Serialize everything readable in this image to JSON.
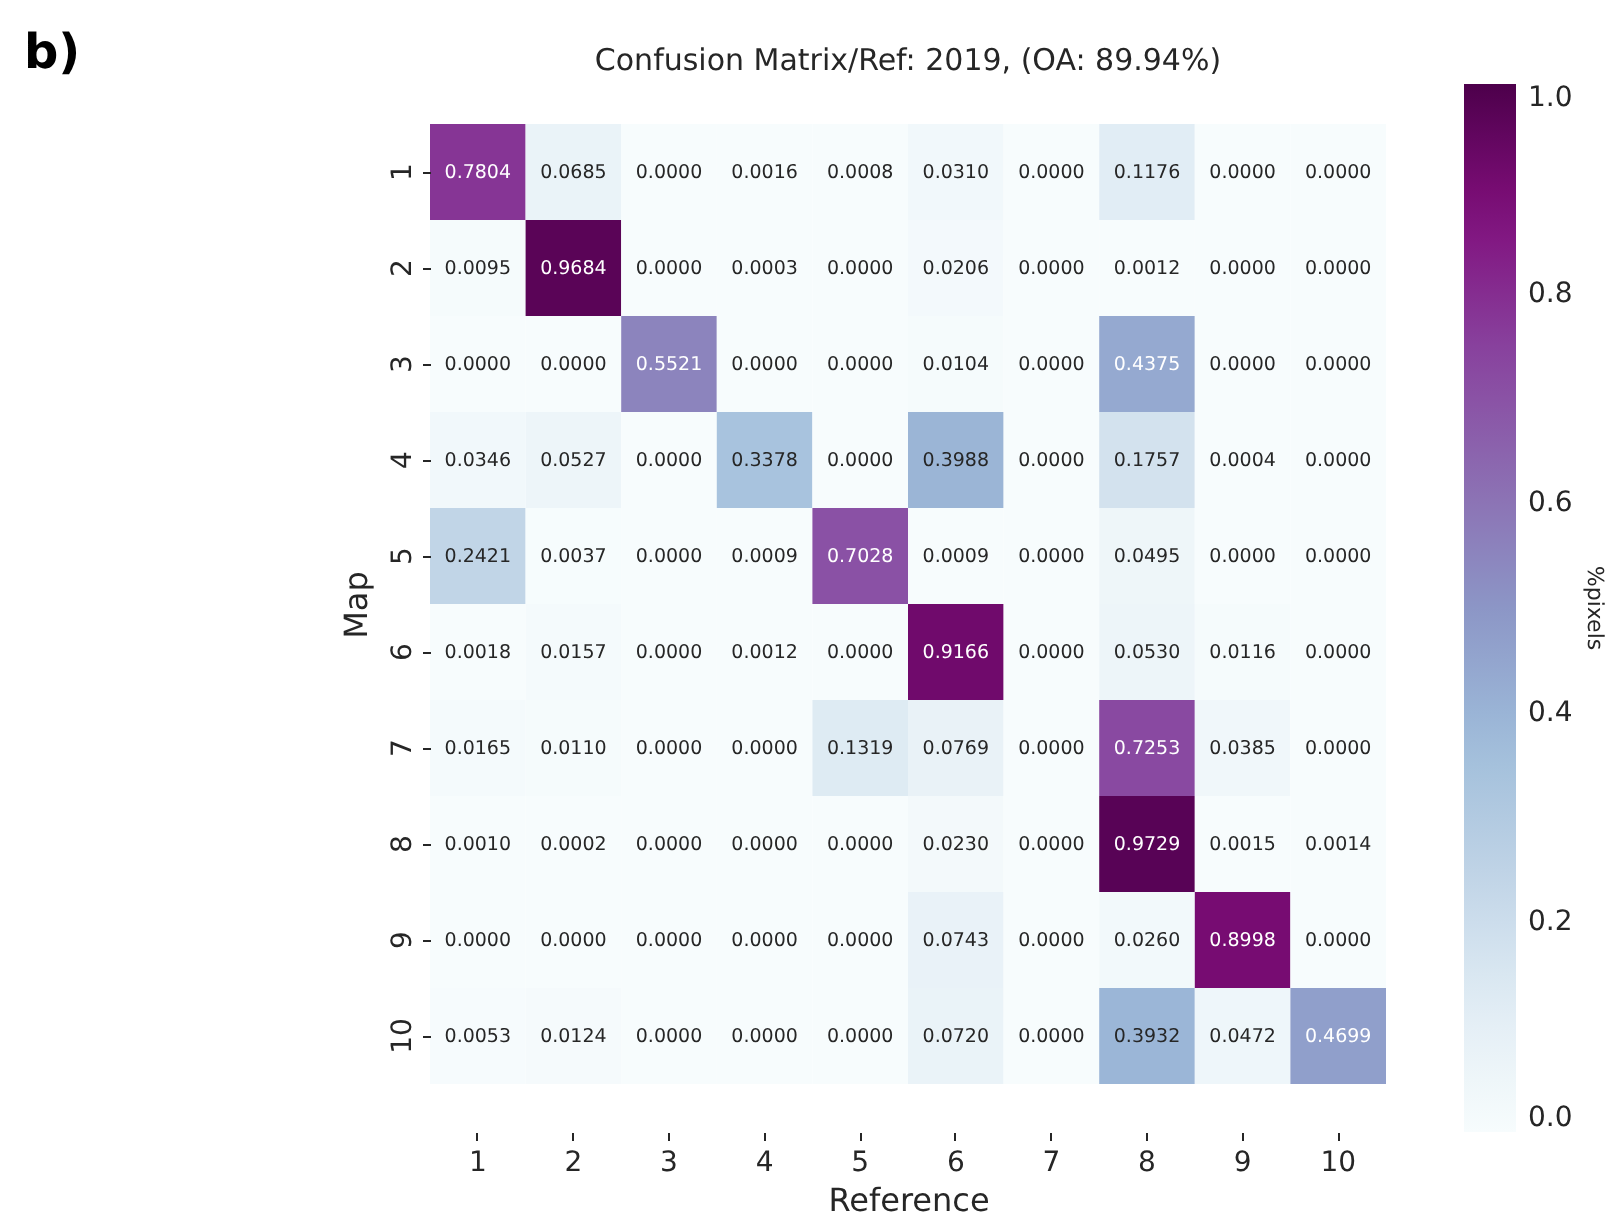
{
  "chart_data": {
    "type": "heatmap",
    "title": "Confusion Matrix/Ref: 2019, (OA: 89.94%)",
    "xlabel": "Reference",
    "ylabel": "Map",
    "clabel": "%pixels",
    "annotations": [
      "b)"
    ],
    "categories": [
      "1",
      "2",
      "3",
      "4",
      "5",
      "6",
      "7",
      "8",
      "9",
      "10"
    ],
    "y_categories": [
      "1",
      "2",
      "3",
      "4",
      "5",
      "6",
      "7",
      "8",
      "9",
      "10"
    ],
    "cells": [
      [
        0.7804,
        0.0685,
        0,
        0.0016,
        0.0008,
        0.031,
        0,
        0.1176,
        0,
        0
      ],
      [
        0.0095,
        0.9684,
        0,
        0.0003,
        0,
        0.0206,
        0,
        0.0012,
        0,
        0
      ],
      [
        0,
        0,
        0.5521,
        0,
        0,
        0.0104,
        0,
        0.4375,
        0,
        0
      ],
      [
        0.0346,
        0.0527,
        0,
        0.3378,
        0,
        0.3988,
        0,
        0.1757,
        0.0004,
        0
      ],
      [
        0.2421,
        0.0037,
        0,
        0.0009,
        0.7028,
        0.0009,
        0,
        0.0495,
        0,
        0
      ],
      [
        0.0018,
        0.0157,
        0,
        0.0012,
        0,
        0.9166,
        0,
        0.053,
        0.0116,
        0
      ],
      [
        0.0165,
        0.011,
        0,
        0,
        0.1319,
        0.0769,
        0,
        0.7253,
        0.0385,
        0
      ],
      [
        0.001,
        0.0002,
        0,
        0,
        0,
        0.023,
        0,
        0.9729,
        0.0015,
        0.0014
      ],
      [
        0,
        0,
        0,
        0,
        0,
        0.0743,
        0,
        0.026,
        0.8998,
        0
      ],
      [
        0.0053,
        0.0124,
        0,
        0,
        0,
        0.072,
        0,
        0.3932,
        0.0472,
        0.4699
      ]
    ],
    "cell_labels": [
      [
        "0.7804",
        "0.0685",
        "0.0000",
        "0.0016",
        "0.0008",
        "0.0310",
        "0.0000",
        "0.1176",
        "0.0000",
        "0.0000"
      ],
      [
        "0.0095",
        "0.9684",
        "0.0000",
        "0.0003",
        "0.0000",
        "0.0206",
        "0.0000",
        "0.0012",
        "0.0000",
        "0.0000"
      ],
      [
        "0.0000",
        "0.0000",
        "0.5521",
        "0.0000",
        "0.0000",
        "0.0104",
        "0.0000",
        "0.4375",
        "0.0000",
        "0.0000"
      ],
      [
        "0.0346",
        "0.0527",
        "0.0000",
        "0.3378",
        "0.0000",
        "0.3988",
        "0.0000",
        "0.1757",
        "0.0004",
        "0.0000"
      ],
      [
        "0.2421",
        "0.0037",
        "0.0000",
        "0.0009",
        "0.7028",
        "0.0009",
        "0.0000",
        "0.0495",
        "0.0000",
        "0.0000"
      ],
      [
        "0.0018",
        "0.0157",
        "0.0000",
        "0.0012",
        "0.0000",
        "0.9166",
        "0.0000",
        "0.0530",
        "0.0116",
        "0.0000"
      ],
      [
        "0.0165",
        "0.0110",
        "0.0000",
        "0.0000",
        "0.1319",
        "0.0769",
        "0.0000",
        "0.7253",
        "0.0385",
        "0.0000"
      ],
      [
        "0.0010",
        "0.0002",
        "0.0000",
        "0.0000",
        "0.0000",
        "0.0230",
        "0.0000",
        "0.9729",
        "0.0015",
        "0.0014"
      ],
      [
        "0.0000",
        "0.0000",
        "0.0000",
        "0.0000",
        "0.0000",
        "0.0743",
        "0.0000",
        "0.0260",
        "0.8998",
        "0.0000"
      ],
      [
        "0.0053",
        "0.0124",
        "0.0000",
        "0.0000",
        "0.0000",
        "0.0720",
        "0.0000",
        "0.3932",
        "0.0472",
        "0.4699"
      ]
    ],
    "clim": [
      0,
      1
    ],
    "cticks": [
      {
        "value": 0,
        "label": "0.0"
      },
      0.2,
      0.4,
      0.6,
      0.8,
      {
        "value": 1,
        "label": "1.0"
      }
    ]
  }
}
